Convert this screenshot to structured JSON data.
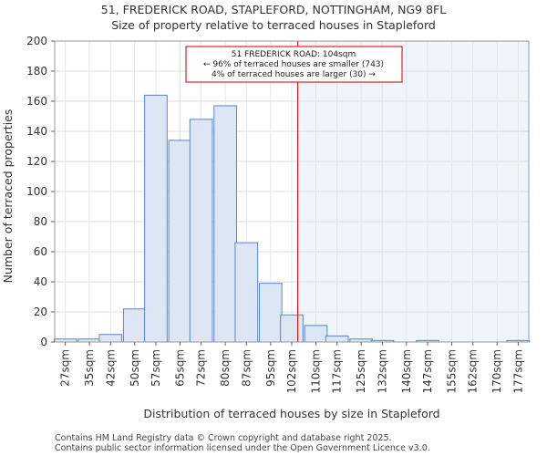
{
  "chart_data": {
    "type": "bar",
    "title_lines": [
      "51, FREDERICK ROAD, STAPLEFORD, NOTTINGHAM, NG9 8FL",
      "Size of property relative to terraced houses in Stapleford"
    ],
    "xlabel": "Distribution of terraced houses by size in Stapleford",
    "ylabel": "Number of terraced properties",
    "ylim": [
      0,
      200
    ],
    "yticks": [
      0,
      20,
      40,
      60,
      80,
      100,
      120,
      140,
      160,
      180,
      200
    ],
    "x_range": [
      23.5,
      180.5
    ],
    "bin_width": 7.45,
    "bar_color": "#dce6f4",
    "bar_edge_color": "#5b86c5",
    "highlight_color": "#f0f4fb",
    "marker_color": "#cc0000",
    "categories": [
      "27sqm",
      "35sqm",
      "42sqm",
      "50sqm",
      "57sqm",
      "65sqm",
      "72sqm",
      "80sqm",
      "87sqm",
      "95sqm",
      "102sqm",
      "110sqm",
      "117sqm",
      "125sqm",
      "132sqm",
      "140sqm",
      "147sqm",
      "155sqm",
      "162sqm",
      "170sqm",
      "177sqm"
    ],
    "tick_values": [
      27,
      35,
      42,
      50,
      57,
      65,
      72,
      80,
      87,
      95,
      102,
      110,
      117,
      125,
      132,
      140,
      147,
      155,
      162,
      170,
      177
    ],
    "values": [
      2,
      2,
      5,
      22,
      164,
      134,
      148,
      157,
      66,
      39,
      18,
      11,
      4,
      2,
      1,
      0,
      1,
      0,
      0,
      0,
      1
    ],
    "subject_size": 104,
    "annotation": {
      "lines": [
        "51 FREDERICK ROAD: 104sqm",
        "← 96% of terraced houses are smaller (743)",
        "4% of terraced houses are larger (30) →"
      ]
    }
  },
  "footer": {
    "line1": "Contains HM Land Registry data © Crown copyright and database right 2025.",
    "line2": "Contains public sector information licensed under the Open Government Licence v3.0."
  }
}
